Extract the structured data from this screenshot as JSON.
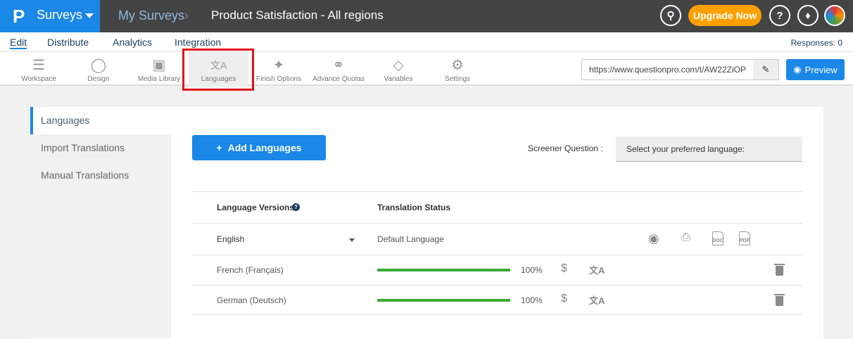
{
  "header": {
    "brand": "Surveys",
    "logo": "P",
    "breadcrumb": [
      "My Surveys",
      "Product Satisfaction - All regions"
    ],
    "upgrade": "Upgrade Now"
  },
  "nav": {
    "tabs": [
      "Edit",
      "Distribute",
      "Analytics",
      "Integration"
    ],
    "active": "Edit",
    "responses": "Responses: 0"
  },
  "toolbar": {
    "items": [
      {
        "label": "Workspace",
        "icon": "list-pen-icon"
      },
      {
        "label": "Design",
        "icon": "palette-icon"
      },
      {
        "label": "Media Library",
        "icon": "image-icon"
      },
      {
        "label": "Languages",
        "icon": "translate-icon",
        "selected": true
      },
      {
        "label": "Finish Options",
        "icon": "magic-wand-icon"
      },
      {
        "label": "Advance Quotas",
        "icon": "chain-icon"
      },
      {
        "label": "Variables",
        "icon": "tag-icon"
      },
      {
        "label": "Settings",
        "icon": "gear-icon"
      }
    ],
    "url": "https://www.questionpro.com/t/AW22ZiOP",
    "preview": "Preview"
  },
  "sidebar": {
    "items": [
      "Languages",
      "Import Translations",
      "Manual Translations"
    ],
    "active": "Languages"
  },
  "main": {
    "add_button": "Add Languages",
    "screener_label": "Screener Question :",
    "screener_value": "Select your preferred language:",
    "table": {
      "headers": [
        "Language Versions",
        "Translation Status"
      ],
      "default_row": {
        "language": "English",
        "status": "Default Language"
      },
      "rows": [
        {
          "language": "French (Français)",
          "progress": "100%"
        },
        {
          "language": "German (Deutsch)",
          "progress": "100%"
        }
      ]
    }
  },
  "colors": {
    "brand": "#1b87e6",
    "upgrade": "#ffa000",
    "progress": "#3ba935",
    "highlight": "#e4141b"
  }
}
